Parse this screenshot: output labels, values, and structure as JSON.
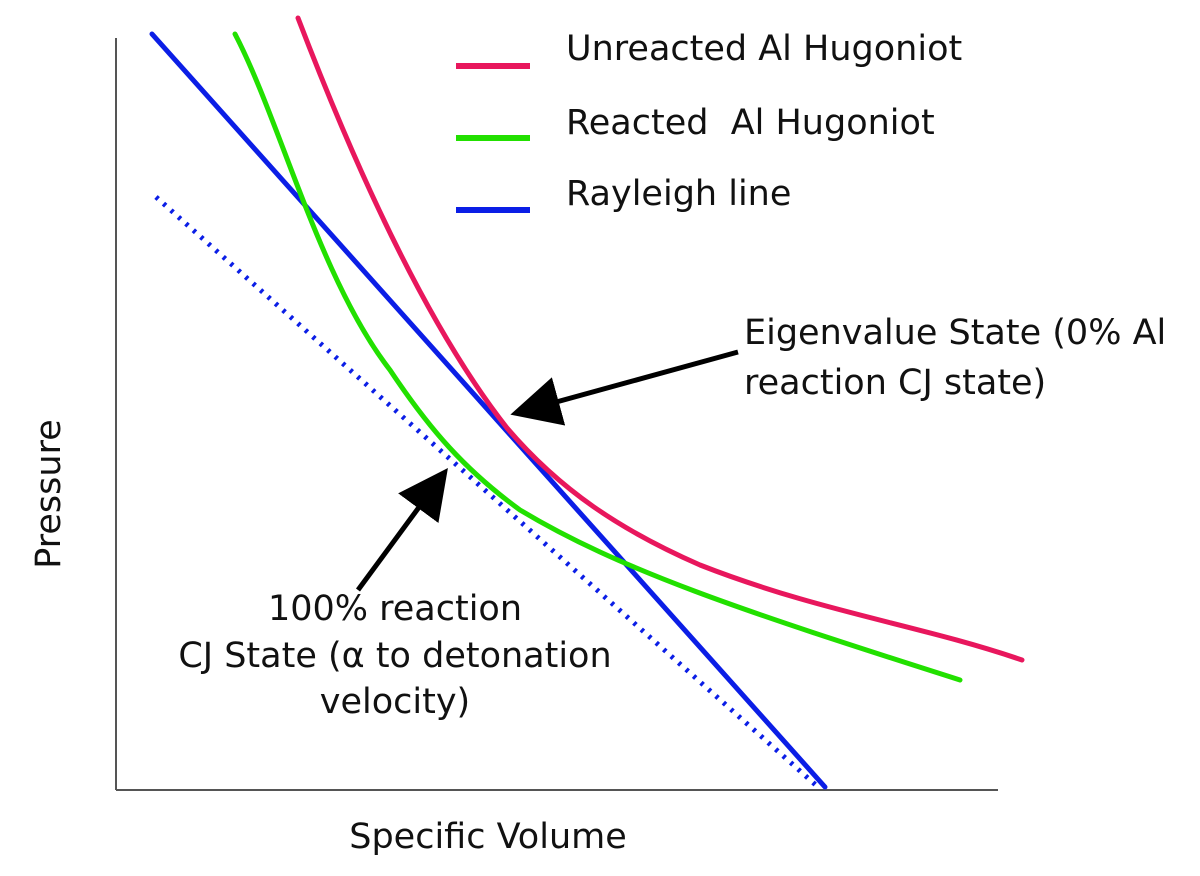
{
  "xlabel": "Specific Volume",
  "ylabel": "Pressure",
  "legend": [
    {
      "label": "Unreacted Al Hugoniot",
      "color": "#e8175d"
    },
    {
      "label": "Reacted  Al Hugoniot",
      "color": "#22e000"
    },
    {
      "label": "Rayleigh line",
      "color": "#0b1ee6"
    }
  ],
  "annotations": {
    "eigenvalue": [
      "Eigenvalue State (0% Al",
      "reaction CJ state)"
    ],
    "cj_state": [
      "100% reaction",
      "CJ State (α to detonation",
      "velocity)"
    ]
  },
  "colors": {
    "axis": "#555555",
    "arrow": "#000000",
    "dotted_line": "#0b1ee6"
  }
}
